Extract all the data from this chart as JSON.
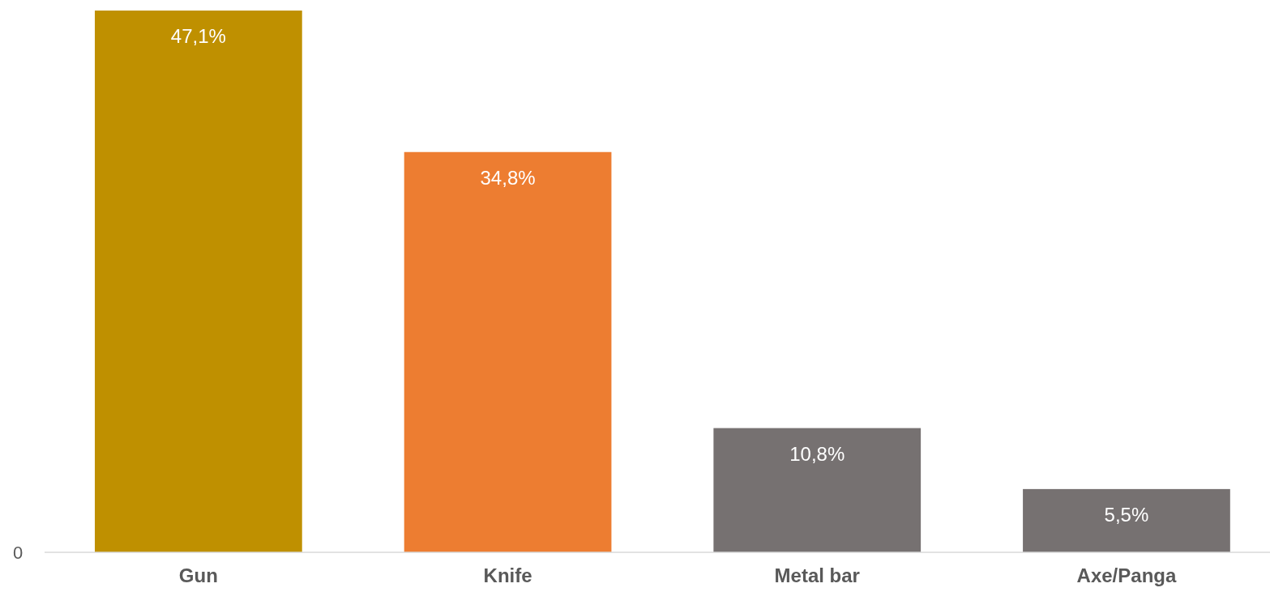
{
  "chart_data": {
    "type": "bar",
    "categories": [
      "Gun",
      "Knife",
      "Metal bar",
      "Axe/Panga"
    ],
    "values": [
      47.1,
      34.8,
      10.8,
      5.5
    ],
    "colors": [
      "#bf9000",
      "#ed7d31",
      "#767171",
      "#767171"
    ],
    "value_labels": [
      "47,1%",
      "34,8%",
      "10,8%",
      "5,5%"
    ],
    "annotations": [
      "0"
    ]
  }
}
